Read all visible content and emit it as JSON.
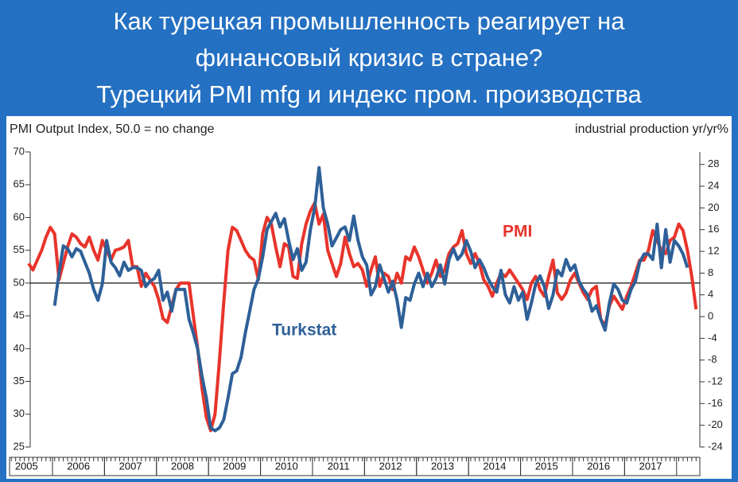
{
  "chart_data": {
    "type": "line",
    "title": [
      "Как турецкая промышленность реагирует на",
      "финансовый кризис в стране?",
      "Турецкий PMI mfg и индекс пром. производства"
    ],
    "ylabel": "PMI Output Index, 50.0 = no change",
    "y2label": "industrial production yr/yr%",
    "categories": [
      null,
      null,
      null,
      null,
      null,
      null,
      "2005",
      null,
      null,
      null,
      null,
      null,
      null,
      null,
      null,
      null,
      null,
      null,
      "2006",
      null,
      null,
      null,
      null,
      null,
      null,
      null,
      null,
      null,
      null,
      null,
      "2007",
      null,
      null,
      null,
      null,
      null,
      null,
      null,
      null,
      null,
      null,
      null,
      "2008",
      null,
      null,
      null,
      null,
      null,
      null,
      null,
      null,
      null,
      null,
      null,
      "2009",
      null,
      null,
      null,
      null,
      null,
      null,
      null,
      null,
      null,
      null,
      null,
      "2010",
      null,
      null,
      null,
      null,
      null,
      null,
      null,
      null,
      null,
      null,
      null,
      "2011",
      null,
      null,
      null,
      null,
      null,
      null,
      null,
      null,
      null,
      null,
      null,
      "2012",
      null,
      null,
      null,
      null,
      null,
      null,
      null,
      null,
      null,
      null,
      null,
      "2013",
      null,
      null,
      null,
      null,
      null,
      null,
      null,
      null,
      null,
      null,
      null,
      "2014",
      null,
      null,
      null,
      null,
      null,
      null,
      null,
      null,
      null,
      null,
      null,
      "2015",
      null,
      null,
      null,
      null,
      null,
      null,
      null,
      null,
      null,
      null,
      null,
      "2016",
      null,
      null,
      null,
      null,
      null,
      null,
      null,
      null,
      null,
      null,
      null,
      "2017",
      null,
      null,
      null,
      null,
      null,
      null,
      null,
      null,
      null,
      null
    ],
    "series": [
      {
        "name": "PMI",
        "color": "#e8342b",
        "values": [
          null,
          null,
          null,
          null,
          null,
          null,
          53,
          52,
          53.5,
          55,
          57,
          58.5,
          57.5,
          50.5,
          53,
          55.5,
          57.5,
          57,
          56,
          55.5,
          57,
          55,
          53.5,
          56.5,
          55,
          53.5,
          55,
          55.2,
          55.5,
          56.5,
          52.5,
          52.5,
          49.5,
          51.5,
          50.5,
          49.5,
          47.5,
          44.6,
          44,
          46.5,
          49,
          50,
          50,
          50,
          45,
          40,
          34,
          29.5,
          27.5,
          30,
          38,
          47,
          55,
          58.5,
          58,
          56.5,
          55,
          54,
          53.5,
          50.5,
          57.5,
          60,
          59,
          55.5,
          52.5,
          56,
          55.5,
          51,
          50.7,
          56,
          59,
          61,
          62.2,
          59,
          60.5,
          55,
          53,
          51,
          53,
          57,
          54.5,
          52.5,
          53,
          52,
          49.5,
          52,
          54,
          49.5,
          51.5,
          51,
          49,
          51.5,
          50,
          54,
          53.5,
          55.5,
          54,
          52,
          50,
          51.5,
          53.5,
          51,
          52,
          54.5,
          55.5,
          56,
          58,
          54.5,
          53,
          54.5,
          53,
          50.5,
          49.5,
          48,
          50,
          51.5,
          51,
          52,
          51,
          50,
          49,
          47.5,
          50,
          51,
          49,
          48,
          51,
          53.5,
          48.5,
          47.5,
          48.5,
          50.5,
          51.5,
          50,
          48.5,
          47.5,
          49,
          49.5,
          44.5,
          43.5,
          46.5,
          48,
          47,
          46,
          48,
          49.5,
          51.5,
          53.5,
          53.5,
          55,
          58,
          56.5,
          55,
          54.5,
          56.5,
          57,
          59,
          58,
          55,
          51,
          46
        ]
      },
      {
        "name": "Turkstat",
        "color": "#2e6098",
        "axis": "y2",
        "values": [
          null,
          null,
          null,
          null,
          null,
          null,
          null,
          null,
          null,
          null,
          null,
          null,
          2,
          8,
          13,
          12.5,
          11,
          12.5,
          12,
          10,
          8,
          5,
          3,
          6,
          14,
          10,
          9,
          7.5,
          10,
          8.5,
          9,
          9,
          8.5,
          5.5,
          6.5,
          7,
          8.5,
          3,
          4.5,
          1,
          5,
          5,
          5,
          -0.5,
          -3,
          -6,
          -11,
          -15,
          -20.5,
          -21,
          -20.5,
          -19,
          -15,
          -10.5,
          -10,
          -7.5,
          -3,
          1,
          5,
          7,
          11,
          16,
          17.5,
          19,
          16.5,
          18,
          14,
          10.5,
          12.5,
          8.5,
          10,
          16,
          20,
          27.4,
          20,
          17,
          13,
          14.5,
          16,
          16.5,
          14,
          18.5,
          14,
          11,
          9.5,
          4,
          5.5,
          9.5,
          7,
          4.5,
          6.5,
          3,
          -2,
          3.5,
          3,
          6,
          8,
          5.5,
          8,
          5.5,
          7,
          9.5,
          6,
          10.5,
          12.5,
          10.5,
          11.5,
          14,
          12,
          9,
          10.5,
          9,
          7,
          5.5,
          4.5,
          8.5,
          4,
          2.5,
          5.5,
          3,
          4.5,
          -0.5,
          2.5,
          6,
          7.5,
          5.5,
          1.5,
          4,
          8.5,
          7.5,
          10.5,
          8.5,
          9.5,
          6.5,
          5,
          4,
          1,
          2,
          -0.5,
          -2.5,
          2.5,
          6,
          5,
          3,
          2.5,
          5,
          6.5,
          10,
          11.5,
          11.5,
          10.5,
          17,
          9,
          16,
          10,
          14,
          13,
          11.5,
          9,
          null,
          null
        ]
      }
    ],
    "ylim": [
      25,
      70
    ],
    "yticks": [
      70,
      65,
      60,
      55,
      50,
      45,
      40,
      35,
      30,
      25
    ],
    "y2lim": [
      -24,
      30.3
    ],
    "y2ticks": [
      28,
      24,
      20,
      16,
      12,
      8,
      4,
      0,
      -4,
      -8,
      -12,
      -16,
      -20,
      -24
    ],
    "reference_line": 50
  }
}
